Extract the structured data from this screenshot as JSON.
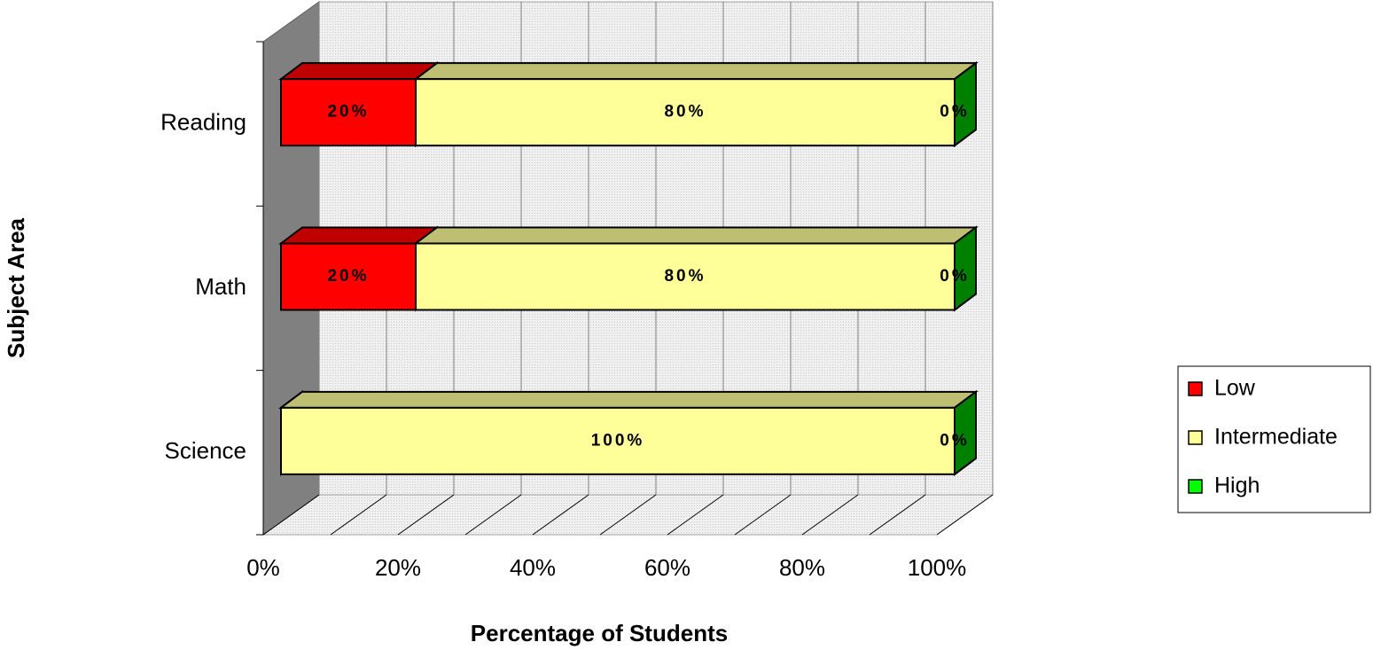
{
  "chart_data": {
    "type": "stacked-bar-3d",
    "x_label": "Percentage of Students",
    "y_label": "Subject Area",
    "categories": [
      "Reading",
      "Math",
      "Science"
    ],
    "series": [
      {
        "name": "Low",
        "color": "#ff0000",
        "values": [
          20,
          20,
          0
        ],
        "value_labels": [
          "20%",
          "20%",
          "0%"
        ]
      },
      {
        "name": "Intermediate",
        "color": "#ffff99",
        "values": [
          80,
          80,
          100
        ],
        "value_labels": [
          "80%",
          "80%",
          "100%"
        ]
      },
      {
        "name": "High",
        "color": "#00ff00",
        "values": [
          0,
          0,
          0
        ],
        "value_labels": [
          "0%",
          "0%",
          "0%"
        ]
      }
    ],
    "xlim": [
      0,
      100
    ],
    "xticks": [
      {
        "value": 0,
        "label": "0%"
      },
      {
        "value": 20,
        "label": "20%"
      },
      {
        "value": 40,
        "label": "40%"
      },
      {
        "value": 60,
        "label": "60%"
      },
      {
        "value": 80,
        "label": "80%"
      },
      {
        "value": 100,
        "label": "100%"
      }
    ],
    "grid": true,
    "legend": "right"
  }
}
